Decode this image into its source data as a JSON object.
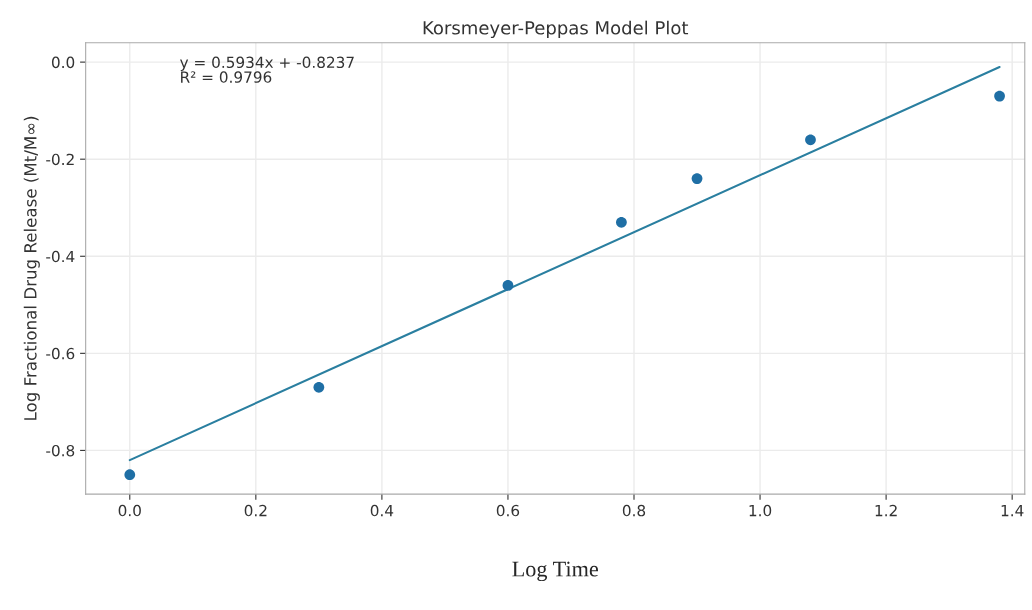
{
  "chart_data": {
    "type": "scatter",
    "title": "Korsmeyer-Peppas Model Plot",
    "xlabel": "Log Time",
    "ylabel": "Log Fractional Drug Release (Mt/M∞)",
    "annotations": [
      "y = 0.5934x + -0.8237\nR² = 0.9796"
    ],
    "x": [
      0,
      0.3,
      0.6,
      0.78,
      0.9,
      1.08,
      1.38
    ],
    "series": [
      {
        "color": "#1f6fa5",
        "marker": "circle",
        "values": [
          -0.85,
          -0.67,
          -0.46,
          -0.33,
          -0.24,
          -0.16,
          -0.07
        ]
      },
      {
        "type": "line",
        "color": "#2a7fa0",
        "x": [
          0,
          1.38
        ],
        "values": [
          -0.82,
          -0.01
        ],
        "line_style": "solid"
      }
    ],
    "xlim": [
      -0.07,
      1.42
    ],
    "ylim": [
      -0.89,
      0.04
    ],
    "xticks": [
      {
        "value": 0,
        "label": "0.0"
      },
      0.2,
      0.4,
      0.6,
      0.8,
      {
        "value": 1,
        "label": "1.0"
      },
      1.2,
      1.4
    ],
    "yticks": [
      {
        "value": 0,
        "label": "0.0"
      },
      -0.2,
      -0.4,
      -0.6,
      -0.8
    ],
    "grid": true,
    "legend": false
  }
}
